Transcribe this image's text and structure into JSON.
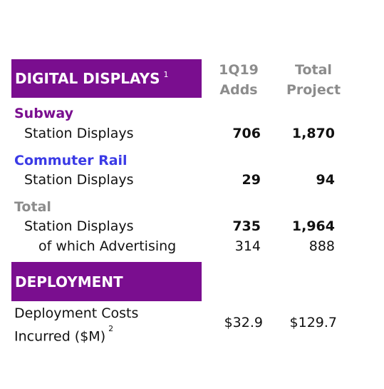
{
  "sections": {
    "digital": {
      "title": "DIGITAL DISPLAYS",
      "footnote": "1"
    },
    "deployment": {
      "title": "DEPLOYMENT"
    }
  },
  "columns": {
    "adds": {
      "line1": "1Q19",
      "line2": "Adds"
    },
    "total": {
      "line1": "Total",
      "line2": "Project"
    }
  },
  "groups": {
    "subway": {
      "label": "Subway",
      "rows": [
        {
          "label": "Station Displays",
          "adds": "706",
          "total": "1,870"
        }
      ]
    },
    "commuter_rail": {
      "label": "Commuter Rail",
      "rows": [
        {
          "label": "Station Displays",
          "adds": "29",
          "total": "94"
        }
      ]
    },
    "total": {
      "label": "Total",
      "rows": [
        {
          "label": "Station Displays",
          "adds": "735",
          "total": "1,964"
        },
        {
          "label": "of which Advertising",
          "adds": "314",
          "total": "888"
        }
      ]
    }
  },
  "deployment_costs": {
    "label_line1": "Deployment Costs",
    "label_line2": "Incurred ($M)",
    "footnote": "2",
    "adds": "$32.9",
    "total": "$129.7"
  },
  "colors": {
    "section_bar": "#7a0e8f",
    "subway": "#7a0e8f",
    "commuter_rail": "#3a3ae6",
    "total_group": "#8c8c8c",
    "column_header": "#8c8c8c"
  }
}
